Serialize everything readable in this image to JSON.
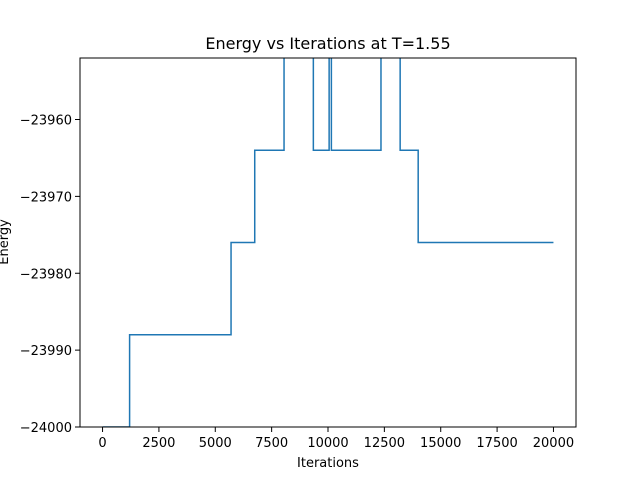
{
  "chart_data": {
    "type": "line",
    "title": "Energy vs Iterations at T=1.55",
    "xlabel": "Iterations",
    "ylabel": "Energy",
    "xlim": [
      -1000,
      21000
    ],
    "ylim": [
      -24000,
      -23952
    ],
    "grid": false,
    "step": true,
    "line_color": "#1f77b4",
    "x_ticks": [
      0,
      2500,
      5000,
      7500,
      10000,
      12500,
      15000,
      17500,
      20000
    ],
    "x_tick_labels": [
      "0",
      "2500",
      "5000",
      "7500",
      "10000",
      "12500",
      "15000",
      "17500",
      "20000"
    ],
    "y_ticks": [
      -24000,
      -23990,
      -23980,
      -23970,
      -23960
    ],
    "y_tick_labels": [
      "−24000",
      "−23990",
      "−23980",
      "−23970",
      "−23960"
    ],
    "series": [
      {
        "x": [
          0,
          1200,
          1200,
          5700,
          5700,
          6750,
          6750,
          8050,
          8050,
          9350,
          9350,
          10050,
          10050,
          10150,
          10150,
          12350,
          12350,
          13200,
          13200,
          14000,
          14000,
          20000
        ],
        "values": [
          -24000,
          -24000,
          -23988,
          -23988,
          -23976,
          -23976,
          -23964,
          -23964,
          -23950,
          -23950,
          -23964,
          -23964,
          -23950,
          -23950,
          -23964,
          -23964,
          -23950,
          -23950,
          -23964,
          -23964,
          -23976,
          -23976
        ]
      }
    ]
  }
}
